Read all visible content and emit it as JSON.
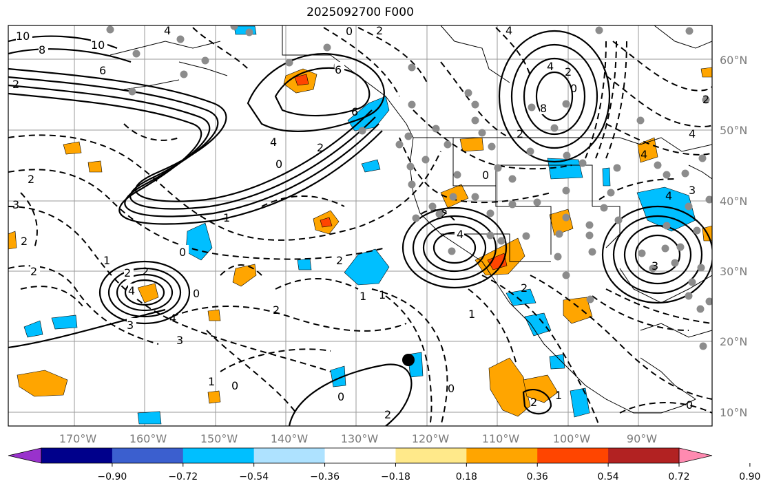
{
  "title": "2025092700 F000",
  "axes": {
    "lat_labels": [
      "60°N",
      "50°N",
      "40°N",
      "30°N",
      "20°N",
      "10°N"
    ],
    "lon_labels": [
      "170°W",
      "160°W",
      "150°W",
      "140°W",
      "130°W",
      "120°W",
      "110°W",
      "100°W",
      "90°W"
    ]
  },
  "colorbar": {
    "ticks": [
      "−0.90",
      "−0.72",
      "−0.54",
      "−0.36",
      "−0.18",
      "0.18",
      "0.36",
      "0.54",
      "0.72",
      "0.90"
    ],
    "colors": [
      "#9932cc",
      "#00008b",
      "#3b5fcf",
      "#00bfff",
      "#aee2ff",
      "#ffffff",
      "#ffe98a",
      "#ffa500",
      "#ff4500",
      "#b22222",
      "#ff8ab0"
    ]
  },
  "contour_labels": [
    "10",
    "8",
    "10",
    "6",
    "4",
    "6",
    "2",
    "0",
    "2",
    "4",
    "2",
    "0",
    "4",
    "2",
    "4",
    "8",
    "6",
    "2",
    "4",
    "3",
    "2",
    "0",
    "4",
    "1",
    "2",
    "2",
    "1",
    "0",
    "4",
    "2",
    "2",
    "4",
    "0",
    "3",
    "2",
    "3",
    "1",
    "0",
    "2",
    "1",
    "1",
    "0",
    "2",
    "0",
    "1",
    "2",
    "2",
    "1",
    "0",
    "3",
    "4",
    "2",
    "4",
    "3",
    "2",
    "0"
  ],
  "markers": {
    "storm_center": "black-dot"
  }
}
